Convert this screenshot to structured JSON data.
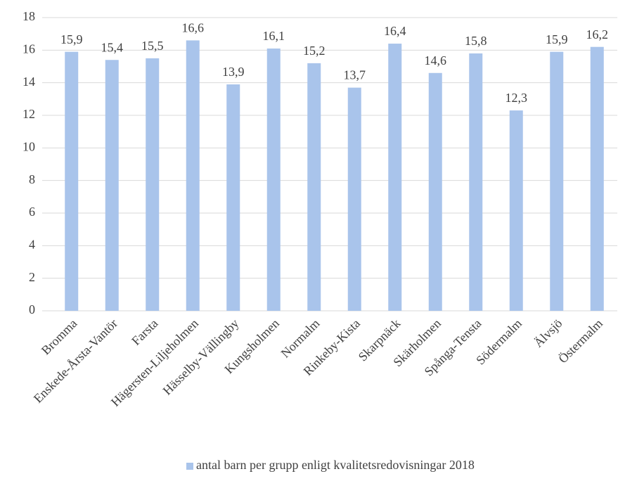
{
  "chart_data": {
    "type": "bar",
    "categories": [
      "Bromma",
      "Enskede-Årsta-Vantör",
      "Farsta",
      "Hägersten-Liljeholmen",
      "Hässelby-Vällingby",
      "Kungsholmen",
      "Normalm",
      "Rinkeby-Kista",
      "Skarpnäck",
      "Skärholmen",
      "Spånga-Tensta",
      "Södermalm",
      "Älvsjö",
      "Östermalm"
    ],
    "series": [
      {
        "name": "antal barn per grupp enligt kvalitetsredovisningar 2018",
        "color": "#a9c4eb",
        "values": [
          15.9,
          15.4,
          15.5,
          16.6,
          13.9,
          16.1,
          15.2,
          13.7,
          16.4,
          14.6,
          15.8,
          12.3,
          15.9,
          16.2
        ],
        "value_labels": [
          "15,9",
          "15,4",
          "15,5",
          "16,6",
          "13,9",
          "16,1",
          "15,2",
          "13,7",
          "16,4",
          "14,6",
          "15,8",
          "12,3",
          "15,9",
          "16,2"
        ]
      }
    ],
    "ylim": [
      0,
      18
    ],
    "yticks": [
      0,
      2,
      4,
      6,
      8,
      10,
      12,
      14,
      16,
      18
    ],
    "grid": true,
    "legend": "bottom"
  }
}
